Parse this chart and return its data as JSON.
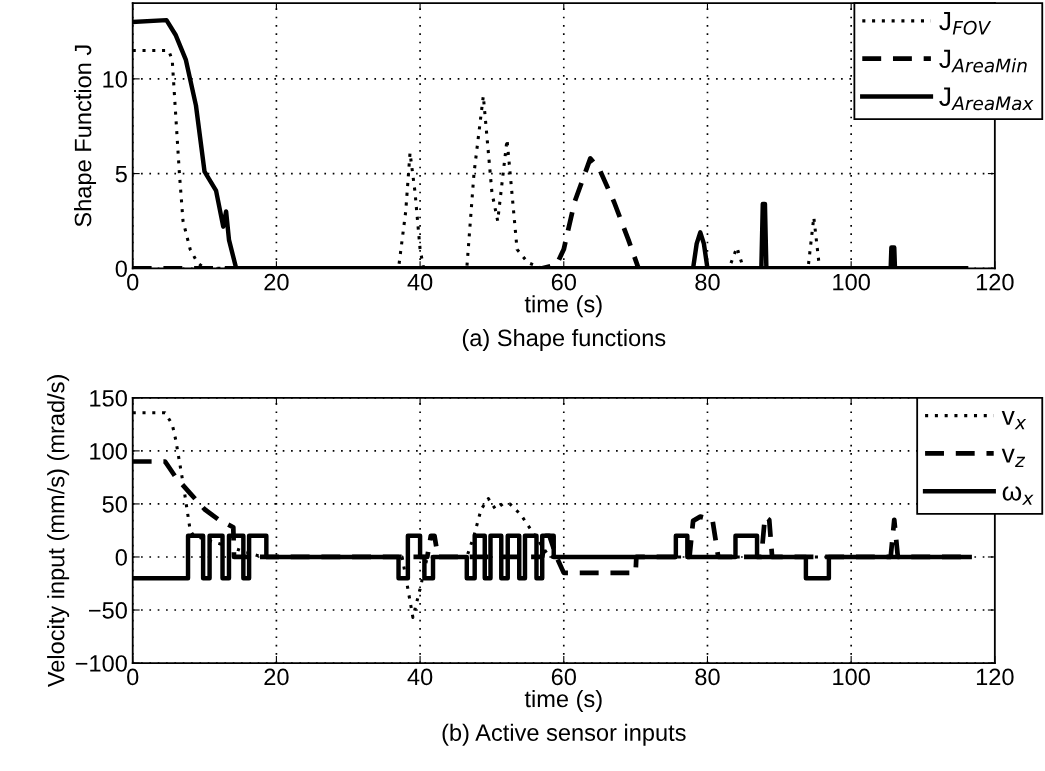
{
  "chart_data": [
    {
      "type": "line",
      "xlabel": "time (s)",
      "ylabel": "Shape Function J",
      "xlim": [
        0,
        120
      ],
      "ylim": [
        0,
        14
      ],
      "xticks": [
        0,
        20,
        40,
        60,
        80,
        100,
        120
      ],
      "yticks": [
        0,
        5,
        10
      ],
      "grid": true,
      "legend": "top right",
      "annotations": [
        "(a) Shape functions"
      ],
      "series": [
        {
          "name": "J$_{FOV}$",
          "color": "#000000",
          "line_style": "dotted",
          "x": [
            0,
            5,
            5.5,
            6,
            6.5,
            7,
            8,
            9,
            10,
            37,
            38,
            38.6,
            39.3,
            40,
            40.5,
            46.5,
            47.5,
            48.8,
            50,
            50.8,
            52.1,
            53.5,
            55,
            57,
            83,
            84.1,
            85,
            94,
            94.8,
            95.6,
            116
          ],
          "values": [
            11.5,
            11.5,
            11,
            8,
            5,
            2.5,
            1,
            0.3,
            0,
            0,
            3,
            6.1,
            4,
            1,
            0,
            0,
            5,
            9.1,
            4,
            2.5,
            6.8,
            1,
            0.3,
            0,
            0,
            1.1,
            0,
            0,
            2.7,
            0,
            0
          ]
        },
        {
          "name": "J$_{AreaMin}$",
          "color": "#000000",
          "line_style": "dashed",
          "x": [
            0,
            57,
            59,
            60,
            61.5,
            63.7,
            65,
            67,
            69,
            70.4,
            116
          ],
          "values": [
            0,
            0,
            0.2,
            1,
            3.5,
            5.8,
            5.2,
            3.5,
            1.5,
            0,
            0
          ]
        },
        {
          "name": "J$_{AreaMax}$",
          "color": "#000000",
          "line_style": "solid",
          "x": [
            0,
            4.7,
            6,
            7.4,
            8.8,
            10,
            11.6,
            12.6,
            13,
            13.4,
            14.4,
            78,
            78.5,
            79,
            79.5,
            80,
            87.5,
            87.7,
            88,
            88.2,
            105.5,
            105.6,
            106,
            106.1,
            116
          ],
          "values": [
            13,
            13.1,
            12.3,
            11,
            8.6,
            5.1,
            4.1,
            2.2,
            3,
            1.5,
            0,
            0,
            1.3,
            1.9,
            1.3,
            0,
            0,
            3.4,
            3.4,
            0,
            0,
            1.1,
            1.1,
            0,
            0
          ]
        }
      ]
    },
    {
      "type": "line",
      "xlabel": "time (s)",
      "ylabel": "Velocity input (mm/s) (mrad/s)",
      "xlim": [
        0,
        120
      ],
      "ylim": [
        -100,
        150
      ],
      "xticks": [
        0,
        20,
        40,
        60,
        80,
        100,
        120
      ],
      "yticks": [
        {
          "value": -100,
          "label": "−100"
        },
        {
          "value": -50,
          "label": "−50"
        },
        0,
        50,
        100,
        150
      ],
      "grid": true,
      "legend": "top right",
      "annotations": [
        "(b) Active sensor inputs"
      ],
      "series": [
        {
          "name": "v$_{x}$",
          "color": "#000000",
          "line_style": "dotted",
          "x": [
            0,
            4.5,
            5.5,
            6,
            7,
            8,
            8.5,
            18,
            37.5,
            38.3,
            39,
            40,
            41,
            46.5,
            47.5,
            48.5,
            49.5,
            50.5,
            51.5,
            52.5,
            54,
            56,
            58,
            116
          ],
          "values": [
            136,
            136,
            125,
            110,
            70,
            25,
            20,
            0,
            0,
            -30,
            -57,
            -30,
            0,
            0,
            20,
            45,
            55,
            45,
            50,
            50,
            40,
            20,
            0,
            0
          ]
        },
        {
          "name": "v$_{z}$",
          "color": "#000000",
          "line_style": "dashed",
          "x": [
            0,
            4.5,
            5,
            6,
            8,
            10,
            12,
            14,
            14.1,
            41,
            41.5,
            42,
            42.5,
            57,
            57.5,
            58,
            59,
            60,
            70,
            70.1,
            77.5,
            78,
            79,
            80.7,
            81.5,
            87.5,
            88,
            88.6,
            89,
            105.5,
            106,
            106.5,
            116
          ],
          "values": [
            90,
            90,
            85,
            75,
            60,
            45,
            35,
            28,
            0,
            0,
            20,
            20,
            0,
            0,
            20,
            20,
            0,
            -15,
            -15,
            0,
            0,
            34,
            38,
            35,
            0,
            0,
            38,
            35,
            0,
            0,
            35,
            0,
            0
          ]
        },
        {
          "name": "ω$_{x}$",
          "color": "#000000",
          "line_style": "solid",
          "x": [
            0,
            7.7,
            7.7,
            9.8,
            9.8,
            10.7,
            10.7,
            12.5,
            12.5,
            13.4,
            13.4,
            15.4,
            15.4,
            16.2,
            16.2,
            18.6,
            18.6,
            37,
            37,
            38.3,
            38.3,
            40,
            40,
            40.6,
            40.6,
            41.8,
            41.8,
            46.5,
            46.5,
            47.6,
            47.6,
            49,
            49,
            49.8,
            49.8,
            51.3,
            51.3,
            52.2,
            52.2,
            53.8,
            53.8,
            54.6,
            54.6,
            56.2,
            56.2,
            57,
            57,
            58.6,
            58.6,
            75.6,
            75.6,
            77.2,
            77.2,
            83.9,
            83.9,
            86.9,
            86.9,
            93.7,
            93.7,
            96.9,
            96.9,
            116.5
          ],
          "values": [
            -20,
            -20,
            20,
            20,
            -20,
            -20,
            20,
            20,
            -20,
            -20,
            20,
            20,
            -20,
            -20,
            20,
            20,
            0,
            0,
            -20,
            -20,
            20,
            20,
            0,
            0,
            -20,
            -20,
            0,
            0,
            -20,
            -20,
            20,
            20,
            -20,
            -20,
            20,
            20,
            -20,
            -20,
            20,
            20,
            -20,
            -20,
            20,
            20,
            -20,
            -20,
            20,
            20,
            0,
            0,
            20,
            20,
            0,
            0,
            20,
            20,
            0,
            0,
            -20,
            -20,
            0,
            0
          ]
        }
      ]
    }
  ]
}
